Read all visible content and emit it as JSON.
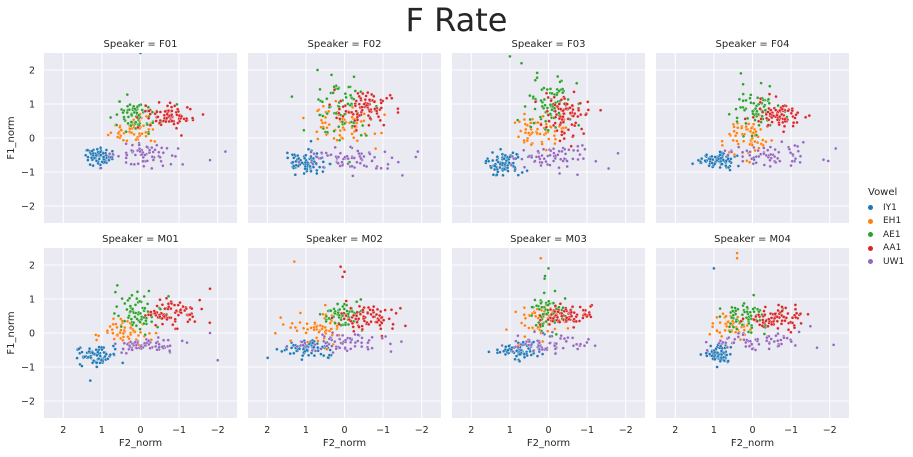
{
  "title": "F Rate",
  "legend": {
    "title": "Vowel",
    "items": [
      {
        "label": "IY1",
        "color": "#1f77b4"
      },
      {
        "label": "EH1",
        "color": "#ff7f0e"
      },
      {
        "label": "AE1",
        "color": "#2ca02c"
      },
      {
        "label": "AA1",
        "color": "#d62728"
      },
      {
        "label": "UW1",
        "color": "#9467bd"
      }
    ],
    "placement": "right"
  },
  "chart_data": {
    "type": "scatter",
    "facet_label_prefix": "Speaker = ",
    "xlabel": "F2_norm",
    "ylabel": "F1_norm",
    "xlim": [
      2.5,
      -2.5
    ],
    "ylim": [
      2.5,
      -2.5
    ],
    "x_ticks": [
      2,
      1,
      0,
      -1,
      -2
    ],
    "x_tick_labels": [
      "2",
      "1",
      "0",
      "−1",
      "−2"
    ],
    "y_ticks": [
      -2,
      -1,
      0,
      1,
      2
    ],
    "y_tick_labels": [
      "−2",
      "−1",
      "0",
      "1",
      "2"
    ],
    "x_inverted": true,
    "y_inverted": true,
    "grid": true,
    "facets": [
      {
        "speaker": "F01",
        "series": [
          {
            "name": "IY1",
            "center": [
              1.1,
              -0.55
            ],
            "spread": [
              0.18,
              0.13
            ],
            "n": 70,
            "outliers": [
              [
                0.0,
                2.5
              ]
            ]
          },
          {
            "name": "EH1",
            "center": [
              0.2,
              0.2
            ],
            "spread": [
              0.3,
              0.2
            ],
            "n": 55
          },
          {
            "name": "AE1",
            "center": [
              0.1,
              0.7
            ],
            "spread": [
              0.3,
              0.25
            ],
            "n": 70
          },
          {
            "name": "AA1",
            "center": [
              -0.75,
              0.65
            ],
            "spread": [
              0.3,
              0.17
            ],
            "n": 75
          },
          {
            "name": "UW1",
            "center": [
              -0.1,
              -0.5
            ],
            "spread": [
              0.5,
              0.15
            ],
            "n": 60,
            "outliers": [
              [
                -1.8,
                -0.65
              ],
              [
                -2.2,
                -0.4
              ]
            ]
          }
        ]
      },
      {
        "speaker": "F02",
        "series": [
          {
            "name": "IY1",
            "center": [
              1.0,
              -0.75
            ],
            "spread": [
              0.3,
              0.2
            ],
            "n": 80
          },
          {
            "name": "EH1",
            "center": [
              0.1,
              0.4
            ],
            "spread": [
              0.4,
              0.28
            ],
            "n": 70
          },
          {
            "name": "AE1",
            "center": [
              0.1,
              0.9
            ],
            "spread": [
              0.4,
              0.4
            ],
            "n": 70,
            "outliers": [
              [
                0.7,
                2.0
              ]
            ]
          },
          {
            "name": "AA1",
            "center": [
              -0.55,
              0.85
            ],
            "spread": [
              0.4,
              0.28
            ],
            "n": 85
          },
          {
            "name": "UW1",
            "center": [
              -0.1,
              -0.6
            ],
            "spread": [
              0.6,
              0.18
            ],
            "n": 70,
            "outliers": [
              [
                -1.5,
                -1.1
              ],
              [
                -1.9,
                -0.4
              ]
            ]
          }
        ]
      },
      {
        "speaker": "F03",
        "series": [
          {
            "name": "IY1",
            "center": [
              1.1,
              -0.75
            ],
            "spread": [
              0.22,
              0.18
            ],
            "n": 80
          },
          {
            "name": "EH1",
            "center": [
              0.2,
              0.2
            ],
            "spread": [
              0.3,
              0.25
            ],
            "n": 60
          },
          {
            "name": "AE1",
            "center": [
              0.0,
              0.95
            ],
            "spread": [
              0.35,
              0.45
            ],
            "n": 75,
            "outliers": [
              [
                1.0,
                2.4
              ],
              [
                0.7,
                2.2
              ]
            ]
          },
          {
            "name": "AA1",
            "center": [
              -0.45,
              0.7
            ],
            "spread": [
              0.3,
              0.3
            ],
            "n": 85
          },
          {
            "name": "UW1",
            "center": [
              0.0,
              -0.6
            ],
            "spread": [
              0.55,
              0.17
            ],
            "n": 65,
            "outliers": [
              [
                -1.8,
                -0.45
              ]
            ]
          }
        ]
      },
      {
        "speaker": "F04",
        "series": [
          {
            "name": "IY1",
            "center": [
              0.9,
              -0.65
            ],
            "spread": [
              0.25,
              0.1
            ],
            "n": 75
          },
          {
            "name": "EH1",
            "center": [
              0.1,
              0.0
            ],
            "spread": [
              0.25,
              0.3
            ],
            "n": 65
          },
          {
            "name": "AE1",
            "center": [
              -0.1,
              0.8
            ],
            "spread": [
              0.3,
              0.3
            ],
            "n": 70,
            "outliers": [
              [
                0.3,
                1.9
              ]
            ]
          },
          {
            "name": "AA1",
            "center": [
              -0.7,
              0.65
            ],
            "spread": [
              0.3,
              0.22
            ],
            "n": 80
          },
          {
            "name": "UW1",
            "center": [
              -0.5,
              -0.5
            ],
            "spread": [
              0.55,
              0.15
            ],
            "n": 60
          }
        ]
      },
      {
        "speaker": "M01",
        "series": [
          {
            "name": "IY1",
            "center": [
              1.1,
              -0.65
            ],
            "spread": [
              0.25,
              0.15
            ],
            "n": 75,
            "outliers": [
              [
                1.3,
                -1.4
              ]
            ]
          },
          {
            "name": "EH1",
            "center": [
              0.3,
              0.0
            ],
            "spread": [
              0.3,
              0.2
            ],
            "n": 55
          },
          {
            "name": "AE1",
            "center": [
              0.05,
              0.6
            ],
            "spread": [
              0.3,
              0.3
            ],
            "n": 70,
            "outliers": [
              [
                0.6,
                1.4
              ]
            ]
          },
          {
            "name": "AA1",
            "center": [
              -0.8,
              0.6
            ],
            "spread": [
              0.3,
              0.2
            ],
            "n": 75,
            "outliers": [
              [
                -1.8,
                1.3
              ]
            ]
          },
          {
            "name": "UW1",
            "center": [
              -0.2,
              -0.35
            ],
            "spread": [
              0.5,
              0.13
            ],
            "n": 60,
            "outliers": [
              [
                -2.0,
                -0.8
              ],
              [
                -1.8,
                0.0
              ]
            ]
          }
        ]
      },
      {
        "speaker": "M02",
        "series": [
          {
            "name": "IY1",
            "center": [
              1.0,
              -0.45
            ],
            "spread": [
              0.35,
              0.13
            ],
            "n": 80
          },
          {
            "name": "EH1",
            "center": [
              0.7,
              0.2
            ],
            "spread": [
              0.4,
              0.25
            ],
            "n": 55,
            "outliers": [
              [
                1.3,
                2.1
              ]
            ]
          },
          {
            "name": "AE1",
            "center": [
              0.0,
              0.55
            ],
            "spread": [
              0.3,
              0.2
            ],
            "n": 60
          },
          {
            "name": "AA1",
            "center": [
              -0.6,
              0.45
            ],
            "spread": [
              0.35,
              0.18
            ],
            "n": 75,
            "outliers": [
              [
                0.0,
                1.8
              ],
              [
                0.1,
                1.95
              ],
              [
                0.05,
                1.65
              ]
            ]
          },
          {
            "name": "UW1",
            "center": [
              0.0,
              -0.3
            ],
            "spread": [
              0.6,
              0.15
            ],
            "n": 65
          }
        ]
      },
      {
        "speaker": "M03",
        "series": [
          {
            "name": "IY1",
            "center": [
              0.7,
              -0.5
            ],
            "spread": [
              0.3,
              0.13
            ],
            "n": 80
          },
          {
            "name": "EH1",
            "center": [
              0.1,
              0.4
            ],
            "spread": [
              0.3,
              0.3
            ],
            "n": 55,
            "outliers": [
              [
                0.2,
                2.2
              ]
            ]
          },
          {
            "name": "AE1",
            "center": [
              0.0,
              0.6
            ],
            "spread": [
              0.25,
              0.3
            ],
            "n": 65,
            "outliers": [
              [
                0.1,
                1.6
              ],
              [
                0.0,
                1.9
              ]
            ]
          },
          {
            "name": "AA1",
            "center": [
              -0.5,
              0.5
            ],
            "spread": [
              0.3,
              0.15
            ],
            "n": 80
          },
          {
            "name": "UW1",
            "center": [
              0.0,
              -0.3
            ],
            "spread": [
              0.55,
              0.15
            ],
            "n": 60
          }
        ]
      },
      {
        "speaker": "M04",
        "series": [
          {
            "name": "IY1",
            "center": [
              0.9,
              -0.6
            ],
            "spread": [
              0.17,
              0.13
            ],
            "n": 75,
            "outliers": [
              [
                1.0,
                1.9
              ]
            ]
          },
          {
            "name": "EH1",
            "center": [
              0.5,
              0.2
            ],
            "spread": [
              0.25,
              0.2
            ],
            "n": 50,
            "outliers": [
              [
                0.4,
                2.2
              ],
              [
                0.4,
                2.35
              ]
            ]
          },
          {
            "name": "AE1",
            "center": [
              0.1,
              0.5
            ],
            "spread": [
              0.3,
              0.25
            ],
            "n": 65
          },
          {
            "name": "AA1",
            "center": [
              -0.6,
              0.45
            ],
            "spread": [
              0.35,
              0.18
            ],
            "n": 80
          },
          {
            "name": "UW1",
            "center": [
              -0.1,
              -0.3
            ],
            "spread": [
              0.55,
              0.15
            ],
            "n": 60,
            "outliers": [
              [
                -1.5,
                0.2
              ],
              [
                -2.1,
                -0.35
              ]
            ]
          }
        ]
      }
    ]
  }
}
